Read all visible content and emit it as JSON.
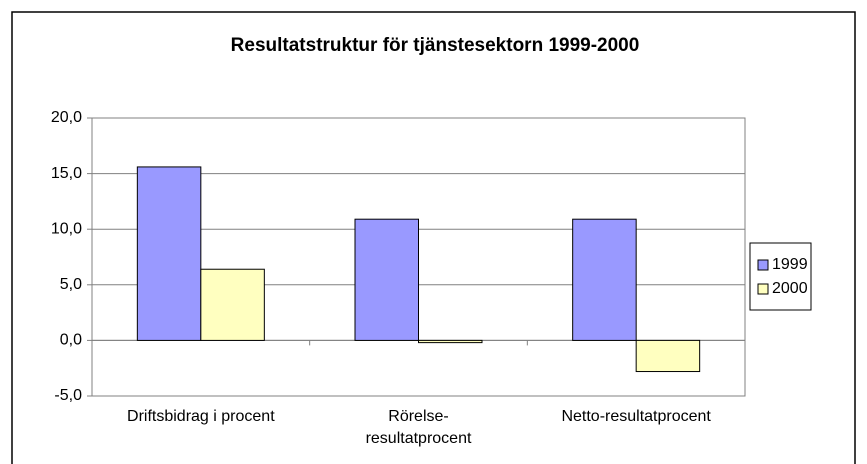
{
  "chart_data": {
    "type": "bar",
    "title": "Resultatstruktur för tjänstesektorn 1999-2000",
    "categories": [
      "Driftsbidrag i procent",
      "Rörelse-resultatprocent",
      "Netto-resultatprocent"
    ],
    "series": [
      {
        "name": "1999",
        "color": "#9999ff",
        "values": [
          15.6,
          10.9,
          10.9
        ]
      },
      {
        "name": "2000",
        "color": "#ffffc0",
        "values": [
          6.4,
          -0.2,
          -2.8
        ]
      }
    ],
    "ylim": [
      -5,
      20
    ],
    "yticks": [
      {
        "value": -5,
        "label": "-5,0"
      },
      {
        "value": 0,
        "label": "0,0"
      },
      {
        "value": 5,
        "label": "5,0"
      },
      {
        "value": 10,
        "label": "10,0"
      },
      {
        "value": 15,
        "label": "15,0"
      },
      {
        "value": 20,
        "label": "20,0"
      }
    ],
    "grid": true,
    "legend": "right"
  }
}
